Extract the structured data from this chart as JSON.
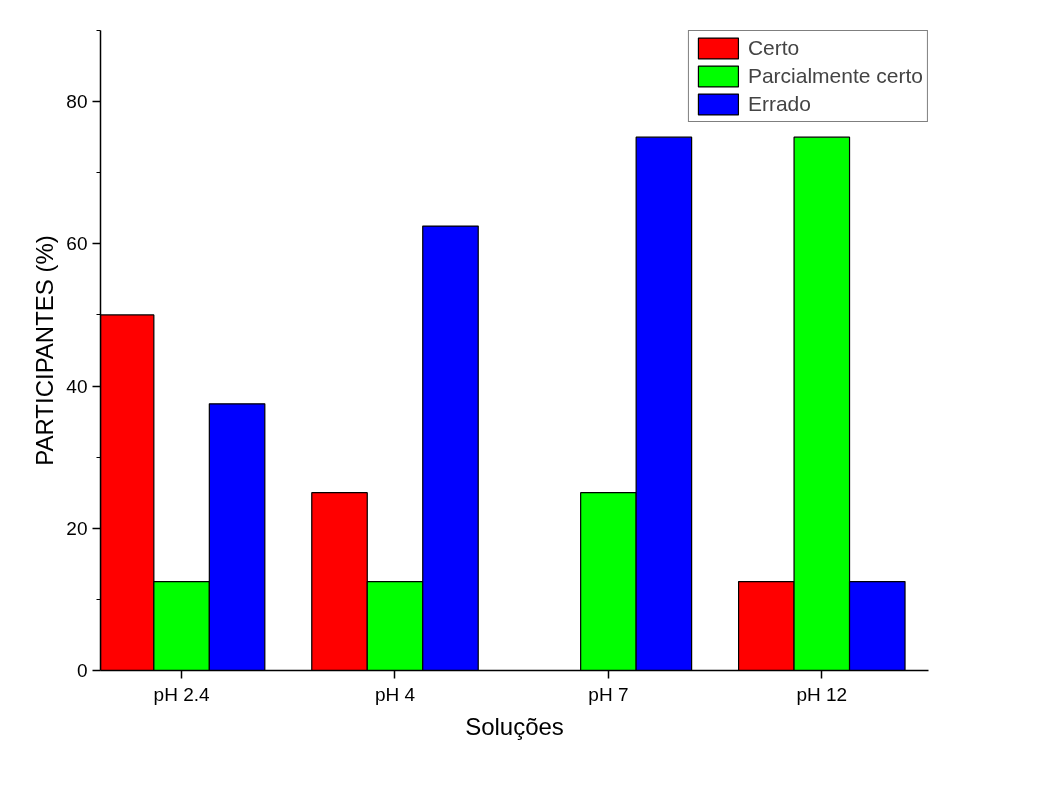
{
  "chart_data": {
    "type": "bar",
    "xlabel": "Soluções",
    "ylabel": "PARTICIPANTES (%)",
    "categories": [
      "pH 2.4",
      "pH 4",
      "pH 7",
      "pH 12"
    ],
    "series": [
      {
        "name": "Certo",
        "color": "#ff0000",
        "values": [
          50,
          25,
          0,
          12.5
        ]
      },
      {
        "name": "Parcialmente certo",
        "color": "#00ff00",
        "values": [
          12.5,
          12.5,
          25,
          75
        ]
      },
      {
        "name": "Errado",
        "color": "#0000ff",
        "values": [
          37.5,
          62.5,
          75,
          12.5
        ]
      }
    ],
    "ylim": [
      0,
      90
    ],
    "yticks": [
      0,
      20,
      40,
      60,
      80
    ],
    "grid": false,
    "legend": "top right"
  }
}
